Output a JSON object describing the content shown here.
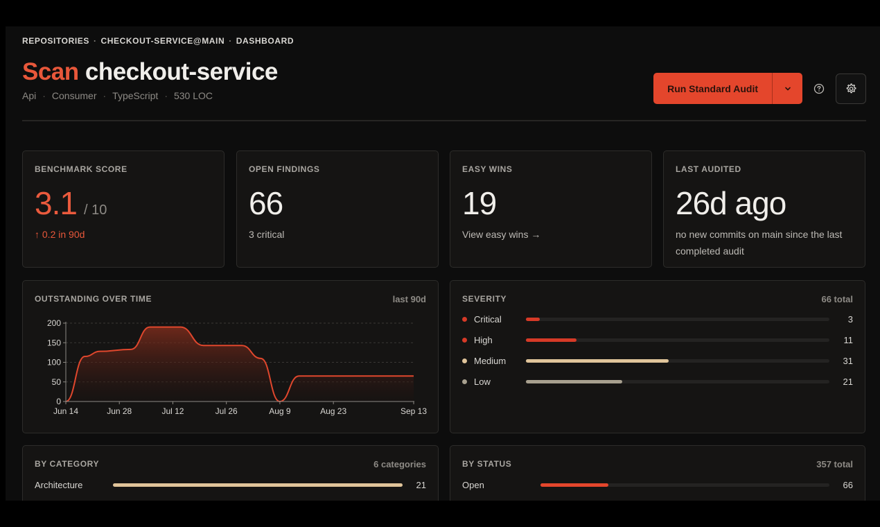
{
  "breadcrumb": {
    "part1": "REPOSITORIES",
    "sep": "·",
    "part2": "CHECKOUT-SERVICE@MAIN",
    "part3": "DASHBOARD"
  },
  "header": {
    "title_accent": "Scan",
    "title_name": "checkout-service",
    "meta": [
      "Api",
      "Consumer",
      "TypeScript",
      "530 LOC"
    ],
    "meta_sep": "·",
    "run_button": "Run Standard Audit"
  },
  "stats": {
    "benchmark": {
      "label": "BENCHMARK SCORE",
      "value": "3.1",
      "of": "/ 10",
      "sub": "↑ 0.2 in 90d"
    },
    "findings": {
      "label": "OPEN FINDINGS",
      "value": "66",
      "sub": "3 critical"
    },
    "easy": {
      "label": "EASY WINS",
      "value": "19",
      "sub": "View easy wins →"
    },
    "audited": {
      "label": "LAST AUDITED",
      "value": "26d ago",
      "sub": "no new commits on main since the last completed audit"
    }
  },
  "outstanding": {
    "label": "OUTSTANDING OVER TIME",
    "range": "last 90d"
  },
  "chart_data": {
    "type": "area",
    "xlabel": "",
    "ylabel": "",
    "ylim": [
      0,
      200
    ],
    "yticks": [
      0,
      50,
      100,
      150,
      200
    ],
    "xticks": [
      "Jun 14",
      "Jun 28",
      "Jul 12",
      "Jul 26",
      "Aug 9",
      "Aug 23",
      "Sep 13"
    ],
    "grid": "horizontal dashed",
    "series": [
      {
        "points": [
          {
            "x": "Jun 14",
            "y": 0
          },
          {
            "x": "Jun 19",
            "y": 115
          },
          {
            "x": "Jun 23",
            "y": 128
          },
          {
            "x": "Jul 1",
            "y": 133
          },
          {
            "x": "Jul 6",
            "y": 190
          },
          {
            "x": "Jul 14",
            "y": 190
          },
          {
            "x": "Jul 20",
            "y": 143
          },
          {
            "x": "Jul 30",
            "y": 143
          },
          {
            "x": "Aug 4",
            "y": 110
          },
          {
            "x": "Aug 9",
            "y": 0
          },
          {
            "x": "Aug 14",
            "y": 65
          },
          {
            "x": "Sep 13",
            "y": 65
          }
        ]
      }
    ],
    "colors": {
      "line": "#e0472d",
      "fill_top": "#8a2f1d",
      "fill_bottom": "#1a1110"
    }
  },
  "severity": {
    "label": "SEVERITY",
    "total": "66 total",
    "rows": [
      {
        "name": "Critical",
        "count": "3",
        "fraction": 0.045,
        "color": "#d63a27"
      },
      {
        "name": "High",
        "count": "11",
        "fraction": 0.167,
        "color": "#d63a27"
      },
      {
        "name": "Medium",
        "count": "31",
        "fraction": 0.47,
        "color": "#e0c49a"
      },
      {
        "name": "Low",
        "count": "21",
        "fraction": 0.318,
        "color": "#a8a08f"
      }
    ]
  },
  "category": {
    "label": "BY CATEGORY",
    "total": "6 categories",
    "rows": [
      {
        "name": "Architecture",
        "count": "21",
        "fraction": 1.0,
        "color": "#e0c49a"
      }
    ]
  },
  "status": {
    "label": "BY STATUS",
    "total": "357 total",
    "rows": [
      {
        "name": "Open",
        "count": "66",
        "fraction": 0.235,
        "color": "#e4462c"
      }
    ]
  }
}
